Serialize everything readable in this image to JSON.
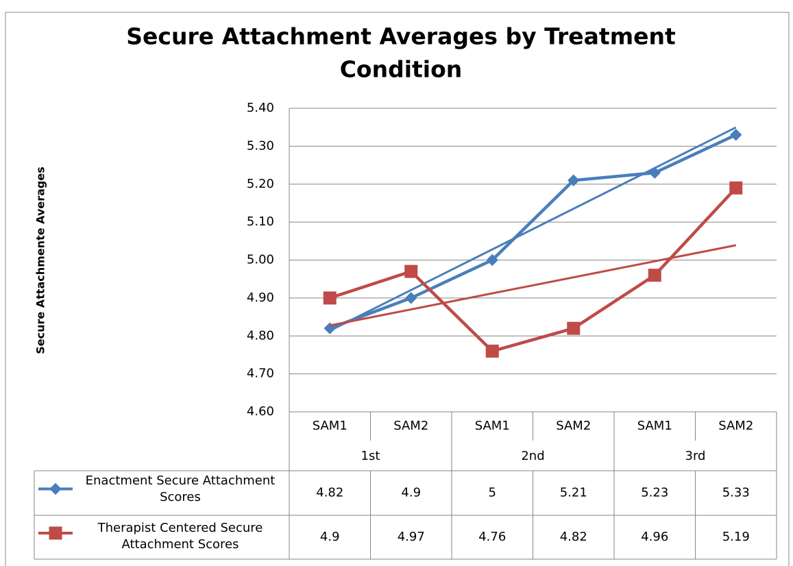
{
  "chart_data": {
    "type": "line",
    "title": "Secure Attachment Averages by Treatment Condition",
    "y_label": "Secure Attachmente Averages",
    "categories": [
      "SAM1",
      "SAM2",
      "SAM1",
      "SAM2",
      "SAM1",
      "SAM2"
    ],
    "groups": [
      "1st",
      "2nd",
      "3rd"
    ],
    "series": [
      {
        "name": "Enactment Secure Attachment Scores",
        "color": "#4a7ebb",
        "marker": "diamond",
        "values": [
          4.82,
          4.9,
          5.0,
          5.21,
          5.23,
          5.33
        ]
      },
      {
        "name": "Therapist Centered Secure Attachment Scores",
        "color": "#be4b48",
        "marker": "square",
        "values": [
          4.9,
          4.97,
          4.76,
          4.82,
          4.96,
          5.19
        ]
      }
    ],
    "ylim": [
      4.6,
      5.4
    ],
    "yticks": [
      {
        "value": 4.6,
        "label": "4.60"
      },
      {
        "value": 4.7,
        "label": "4.70"
      },
      {
        "value": 4.8,
        "label": "4.80"
      },
      {
        "value": 4.9,
        "label": "4.90"
      },
      {
        "value": 5.0,
        "label": "5.00"
      },
      {
        "value": 5.1,
        "label": "5.10"
      },
      {
        "value": 5.2,
        "label": "5.20"
      },
      {
        "value": 5.3,
        "label": "5.30"
      },
      {
        "value": 5.4,
        "label": "5.40"
      }
    ],
    "grid": true,
    "trendline": "linear",
    "data_table": true
  }
}
